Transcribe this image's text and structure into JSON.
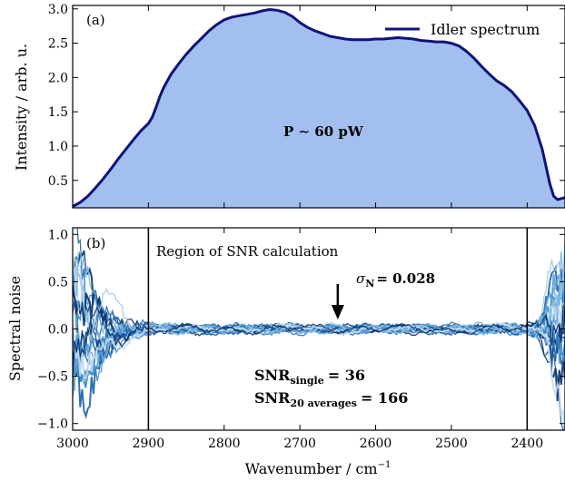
{
  "xlabel": "Wavenumber / cm",
  "xlabel_sup": "−1",
  "chart_data": [
    {
      "panel_label": "(a)",
      "type": "area",
      "ylabel": "Intensity / arb. u.",
      "xlim": [
        3000,
        2350
      ],
      "ylim": [
        0.1,
        3.05
      ],
      "x_reversed": true,
      "yticks": [
        {
          "v": 0.5,
          "l": "0.5"
        },
        {
          "v": 1.0,
          "l": "1.0"
        },
        {
          "v": 1.5,
          "l": "1.5"
        },
        {
          "v": 2.0,
          "l": "2.0"
        },
        {
          "v": 2.5,
          "l": "2.5"
        },
        {
          "v": 3.0,
          "l": "3.0"
        }
      ],
      "legend": {
        "label": "Idler spectrum",
        "position": "top-right"
      },
      "annotation": "P ∼ 60 pW",
      "line_color": "#0f137a",
      "fill_color": "#a3bff0",
      "series": [
        {
          "name": "Idler spectrum",
          "x": [
            3000,
            2990,
            2980,
            2970,
            2960,
            2950,
            2940,
            2930,
            2920,
            2910,
            2900,
            2895,
            2890,
            2885,
            2880,
            2870,
            2860,
            2850,
            2840,
            2830,
            2820,
            2810,
            2800,
            2790,
            2780,
            2770,
            2760,
            2750,
            2740,
            2730,
            2720,
            2710,
            2700,
            2690,
            2680,
            2670,
            2660,
            2650,
            2640,
            2630,
            2620,
            2610,
            2600,
            2590,
            2580,
            2570,
            2560,
            2550,
            2540,
            2530,
            2520,
            2510,
            2500,
            2490,
            2480,
            2470,
            2460,
            2450,
            2440,
            2430,
            2420,
            2410,
            2400,
            2390,
            2380,
            2370,
            2365,
            2360,
            2350
          ],
          "values": [
            0.12,
            0.18,
            0.27,
            0.39,
            0.52,
            0.66,
            0.81,
            0.95,
            1.09,
            1.22,
            1.33,
            1.42,
            1.56,
            1.72,
            1.85,
            2.05,
            2.2,
            2.34,
            2.46,
            2.57,
            2.68,
            2.77,
            2.84,
            2.88,
            2.9,
            2.92,
            2.94,
            2.97,
            2.99,
            2.98,
            2.95,
            2.89,
            2.8,
            2.73,
            2.68,
            2.64,
            2.6,
            2.58,
            2.56,
            2.55,
            2.55,
            2.55,
            2.56,
            2.56,
            2.57,
            2.58,
            2.57,
            2.56,
            2.54,
            2.53,
            2.52,
            2.52,
            2.5,
            2.46,
            2.38,
            2.28,
            2.16,
            2.05,
            1.95,
            1.88,
            1.79,
            1.66,
            1.52,
            1.3,
            0.95,
            0.45,
            0.27,
            0.22,
            0.25
          ]
        }
      ]
    },
    {
      "panel_label": "(b)",
      "type": "line",
      "ylabel": "Spectral noise",
      "xlim": [
        3000,
        2350
      ],
      "ylim": [
        -1.07,
        1.07
      ],
      "x_reversed": true,
      "yticks": [
        {
          "v": -1.0,
          "l": "−1.0"
        },
        {
          "v": -0.5,
          "l": "−0.5"
        },
        {
          "v": 0.0,
          "l": "0.0"
        },
        {
          "v": 0.5,
          "l": "0.5"
        },
        {
          "v": 1.0,
          "l": "1.0"
        }
      ],
      "xticks": [
        {
          "v": 3000,
          "l": "3000"
        },
        {
          "v": 2900,
          "l": "2900"
        },
        {
          "v": 2800,
          "l": "2800"
        },
        {
          "v": 2700,
          "l": "2700"
        },
        {
          "v": 2600,
          "l": "2600"
        },
        {
          "v": 2500,
          "l": "2500"
        },
        {
          "v": 2400,
          "l": "2400"
        }
      ],
      "region": {
        "from": 2900,
        "to": 2400,
        "label": "Region of SNR calculation"
      },
      "sigma_label": "σ",
      "sigma_sub": "N",
      "sigma_value": "= 0.028",
      "arrow_x": 2650,
      "snr_single_main": "SNR",
      "snr_single_sub": "single",
      "snr_single_value": "= 36",
      "snr_avg_main": "SNR",
      "snr_avg_sub": "20 averages",
      "snr_avg_value": "= 166",
      "series_count": 20,
      "noise_envelope": {
        "x": [
          3000,
          2980,
          2960,
          2940,
          2920,
          2900,
          2880,
          2800,
          2700,
          2600,
          2500,
          2420,
          2400,
          2380,
          2370,
          2360,
          2350
        ],
        "amplitude": [
          1.0,
          0.65,
          0.38,
          0.2,
          0.12,
          0.08,
          0.07,
          0.06,
          0.06,
          0.06,
          0.06,
          0.07,
          0.08,
          0.18,
          0.45,
          0.85,
          1.0
        ]
      },
      "colors": [
        "#0b2f6b",
        "#0f4d8a",
        "#1c62a8",
        "#2a77bd",
        "#3d8ccc",
        "#5aa0d6",
        "#7bb5e0",
        "#9fcbea",
        "#c4ddf2",
        "#08306b"
      ]
    }
  ]
}
